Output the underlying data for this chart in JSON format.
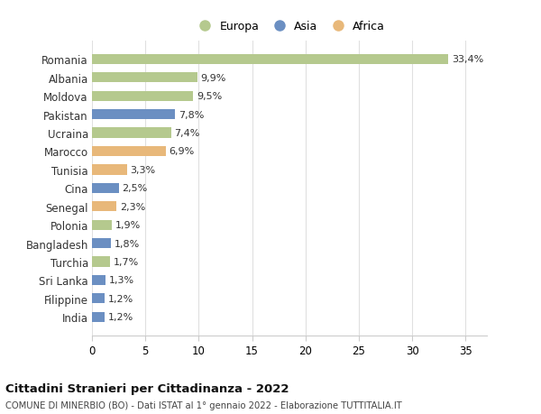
{
  "title": "Cittadini Stranieri per Cittadinanza - 2022",
  "subtitle": "COMUNE DI MINERBIO (BO) - Dati ISTAT al 1° gennaio 2022 - Elaborazione TUTTITALIA.IT",
  "countries": [
    "Romania",
    "Albania",
    "Moldova",
    "Pakistan",
    "Ucraina",
    "Marocco",
    "Tunisia",
    "Cina",
    "Senegal",
    "Polonia",
    "Bangladesh",
    "Turchia",
    "Sri Lanka",
    "Filippine",
    "India"
  ],
  "values": [
    33.4,
    9.9,
    9.5,
    7.8,
    7.4,
    6.9,
    3.3,
    2.5,
    2.3,
    1.9,
    1.8,
    1.7,
    1.3,
    1.2,
    1.2
  ],
  "continents": [
    "Europa",
    "Europa",
    "Europa",
    "Asia",
    "Europa",
    "Africa",
    "Africa",
    "Asia",
    "Africa",
    "Europa",
    "Asia",
    "Europa",
    "Asia",
    "Asia",
    "Asia"
  ],
  "colors": {
    "Europa": "#b5c98e",
    "Asia": "#6b8fc2",
    "Africa": "#e8b87a"
  },
  "xlim": [
    0,
    37
  ],
  "xticks": [
    0,
    5,
    10,
    15,
    20,
    25,
    30,
    35
  ],
  "background_color": "#ffffff",
  "grid_color": "#e0e0e0",
  "bar_height": 0.55,
  "figsize": [
    6.0,
    4.6
  ],
  "dpi": 100
}
